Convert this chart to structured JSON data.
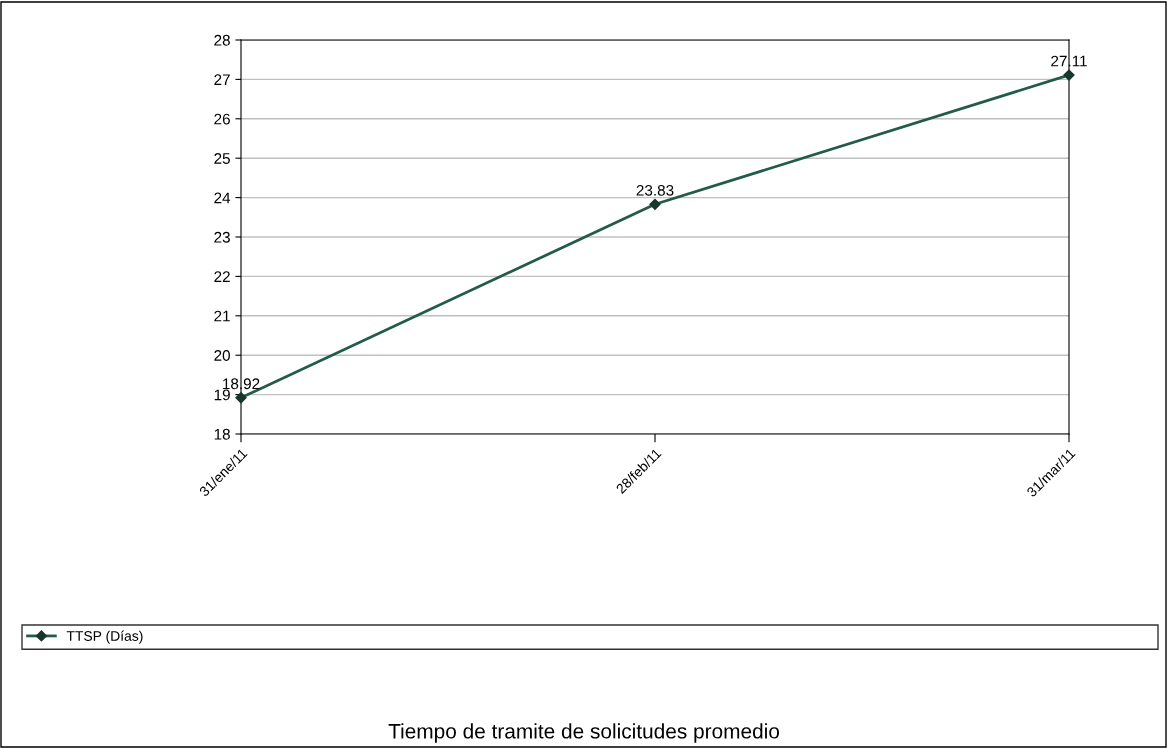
{
  "chart_data": {
    "type": "line",
    "title": "Tiempo de tramite de solicitudes promedio",
    "categories": [
      "31/ene/11",
      "28/feb/11",
      "31/mar/11"
    ],
    "series": [
      {
        "name": "TTSP (Días)",
        "color": "#235b4a",
        "values": [
          18.92,
          23.83,
          27.11
        ]
      }
    ],
    "ylim": [
      18,
      28
    ],
    "yticks": [
      18,
      19,
      20,
      21,
      22,
      23,
      24,
      25,
      26,
      27,
      28
    ],
    "grid": "y",
    "legend": "bottom",
    "marker": "diamond",
    "line_style": "solid",
    "data_labels": true
  }
}
